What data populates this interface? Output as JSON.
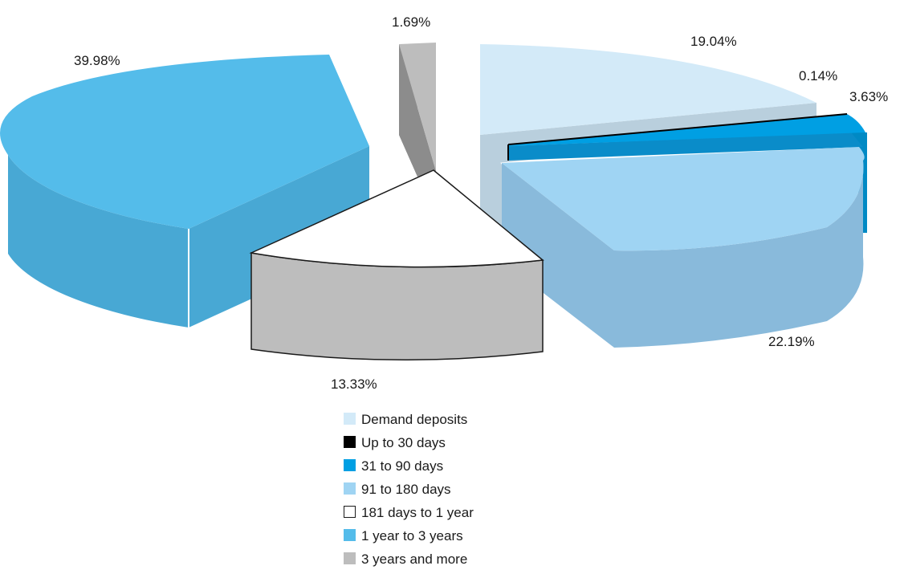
{
  "chart_data": {
    "type": "pie",
    "style": "3d-exploded",
    "title": "",
    "legend_position": "bottom",
    "slices": [
      {
        "label": "Demand deposits",
        "value": 19.04,
        "value_label": "19.04%",
        "color": "#d3eaf8"
      },
      {
        "label": "Up to 30 days",
        "value": 0.14,
        "value_label": "0.14%",
        "color": "#000000"
      },
      {
        "label": "31 to 90 days",
        "value": 3.63,
        "value_label": "3.63%",
        "color": "#009fe3"
      },
      {
        "label": "91 to 180 days",
        "value": 22.19,
        "value_label": "22.19%",
        "color": "#9fd4f3"
      },
      {
        "label": "181 days to 1 year",
        "value": 13.33,
        "value_label": "13.33%",
        "color": "#ffffff"
      },
      {
        "label": "1 year to 3 years",
        "value": 39.98,
        "value_label": "39.98%",
        "color": "#54bcea"
      },
      {
        "label": "3 years and more",
        "value": 1.69,
        "value_label": "1.69%",
        "color": "#bdbdbd"
      }
    ]
  }
}
